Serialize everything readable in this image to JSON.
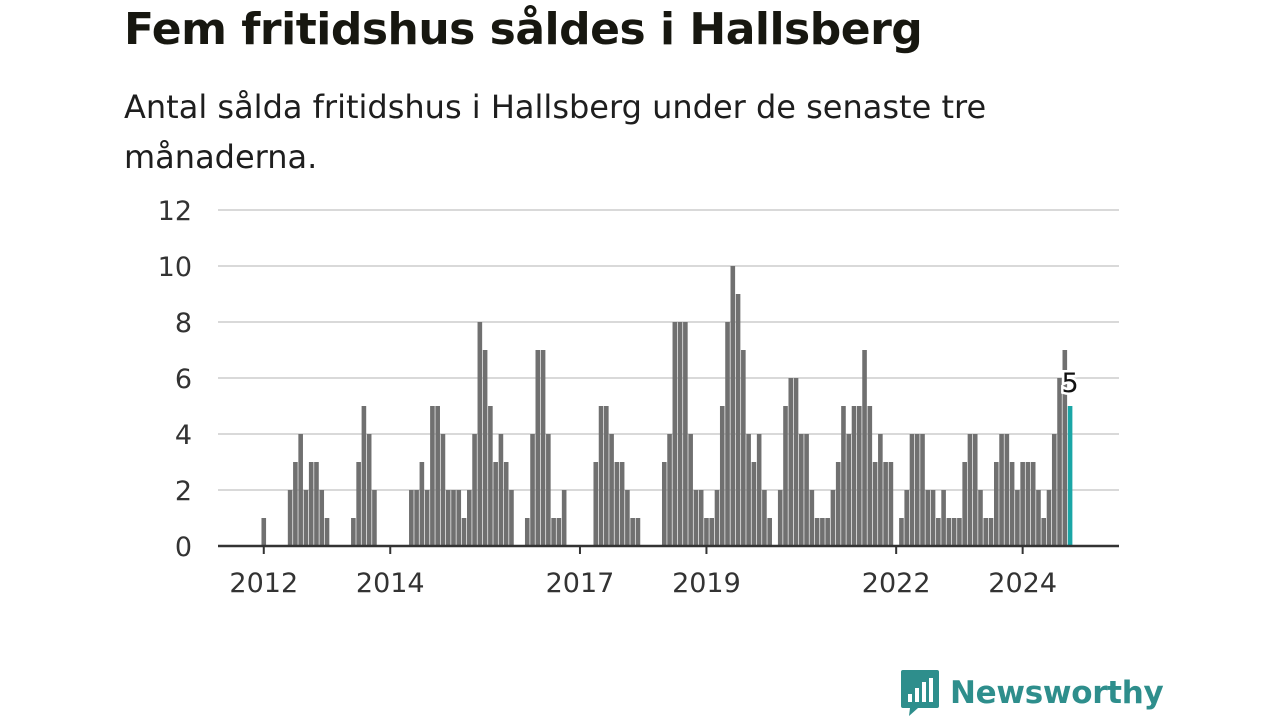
{
  "title": "Fem fritidshus såldes i Hallsberg",
  "subtitle": "Antal sålda fritidshus i Hallsberg under de senaste tre månaderna.",
  "brand": {
    "name": "Newsworthy",
    "icon": "bar-chart-speech-bubble-icon",
    "color": "#2e8e8c"
  },
  "colors": {
    "bar": "#707070",
    "highlight": "#1aa6a6",
    "grid": "#d9d9d9",
    "axis": "#333333"
  },
  "chart_data": {
    "type": "bar",
    "xlabel": "",
    "ylabel": "",
    "ylim": [
      0,
      12
    ],
    "yticks": [
      0,
      2,
      4,
      6,
      8,
      10,
      12
    ],
    "x_start": "2011-12",
    "interval": "month",
    "xtick_labels": [
      {
        "label": "2012",
        "at": "2012-01"
      },
      {
        "label": "2014",
        "at": "2014-01"
      },
      {
        "label": "2017",
        "at": "2017-01"
      },
      {
        "label": "2019",
        "at": "2019-01"
      },
      {
        "label": "2022",
        "at": "2022-01"
      },
      {
        "label": "2024",
        "at": "2024-01"
      }
    ],
    "values": [
      0,
      1,
      0,
      0,
      0,
      0,
      2,
      3,
      4,
      2,
      3,
      3,
      2,
      1,
      0,
      0,
      0,
      0,
      1,
      3,
      5,
      4,
      2,
      0,
      0,
      0,
      0,
      0,
      0,
      2,
      2,
      3,
      2,
      5,
      5,
      4,
      2,
      2,
      2,
      1,
      2,
      4,
      8,
      7,
      5,
      3,
      4,
      3,
      2,
      0,
      0,
      1,
      4,
      7,
      7,
      4,
      1,
      1,
      2,
      0,
      0,
      0,
      0,
      0,
      3,
      5,
      5,
      4,
      3,
      3,
      2,
      1,
      1,
      0,
      0,
      0,
      0,
      3,
      4,
      8,
      8,
      8,
      4,
      2,
      2,
      1,
      1,
      2,
      5,
      8,
      10,
      9,
      7,
      4,
      3,
      4,
      2,
      1,
      0,
      2,
      5,
      6,
      6,
      4,
      4,
      2,
      1,
      1,
      1,
      2,
      3,
      5,
      4,
      5,
      5,
      7,
      5,
      3,
      4,
      3,
      3,
      0,
      1,
      2,
      4,
      4,
      4,
      2,
      2,
      1,
      2,
      1,
      1,
      1,
      3,
      4,
      4,
      2,
      1,
      1,
      3,
      4,
      4,
      3,
      2,
      3,
      3,
      3,
      2,
      1,
      2,
      4,
      6,
      7,
      5
    ],
    "highlight": {
      "value": 5,
      "label": "5"
    }
  }
}
